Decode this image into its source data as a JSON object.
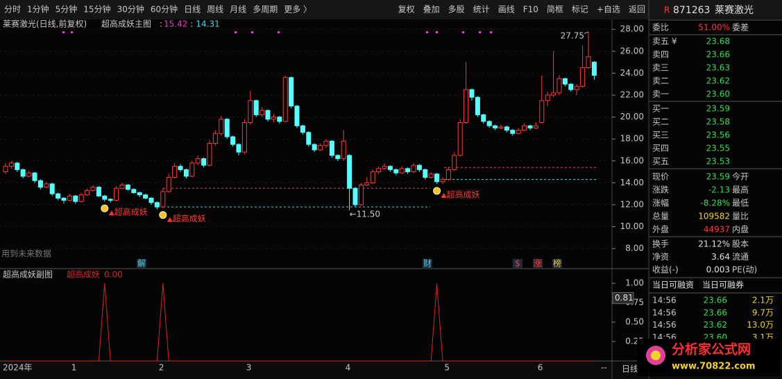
{
  "toolbar": {
    "left": [
      "分时",
      "1分钟",
      "5分钟",
      "15分钟",
      "30分钟",
      "60分钟",
      "日线",
      "周线",
      "月线",
      "多周期",
      "更多 〉"
    ],
    "right": [
      "复权",
      "叠加",
      "多股",
      "统计",
      "画线",
      "F10",
      "简框",
      "标记",
      "+自选",
      "返回"
    ]
  },
  "chart_data": [
    {
      "type": "candlestick",
      "title": "莱赛激光(日线,前复权)",
      "indicator": "超高成妖主图",
      "indicator_values": [
        {
          "value": 15.42,
          "color": "#e040c0"
        },
        {
          "value": 14.31,
          "color": "#40d8e8"
        }
      ],
      "up_color": "#ff3838",
      "down_color": "#54ffff",
      "categories": [
        "2024年",
        null,
        null,
        null,
        null,
        null,
        null,
        null,
        null,
        null,
        null,
        null,
        "1",
        null,
        null,
        null,
        null,
        null,
        null,
        null,
        null,
        null,
        null,
        null,
        null,
        null,
        null,
        "2",
        null,
        null,
        null,
        null,
        null,
        null,
        null,
        null,
        null,
        null,
        null,
        null,
        null,
        null,
        "3",
        null,
        null,
        null,
        null,
        null,
        null,
        null,
        null,
        null,
        null,
        null,
        null,
        null,
        null,
        null,
        null,
        "4",
        null,
        null,
        null,
        null,
        null,
        null,
        null,
        null,
        null,
        null,
        null,
        null,
        null,
        null,
        null,
        null,
        "5",
        null,
        null,
        null,
        null,
        null,
        null,
        null,
        null,
        null,
        null,
        null,
        null,
        null,
        null,
        null,
        "6",
        null,
        null,
        null,
        null,
        null,
        null,
        null,
        null,
        null
      ],
      "candles": [
        [
          15.0,
          15.8,
          14.8,
          15.5
        ],
        [
          15.5,
          16.0,
          15.3,
          15.8
        ],
        [
          15.8,
          15.9,
          15.0,
          15.2
        ],
        [
          15.2,
          15.3,
          14.4,
          14.6
        ],
        [
          14.6,
          15.1,
          14.5,
          14.9
        ],
        [
          14.9,
          15.0,
          14.0,
          14.2
        ],
        [
          14.2,
          14.3,
          13.4,
          13.6
        ],
        [
          13.6,
          14.1,
          13.5,
          13.9
        ],
        [
          13.9,
          14.0,
          12.8,
          13.0
        ],
        [
          13.0,
          13.1,
          12.4,
          12.6
        ],
        [
          12.6,
          12.7,
          12.1,
          12.4
        ],
        [
          12.4,
          13.0,
          12.3,
          12.8
        ],
        [
          12.8,
          12.9,
          12.1,
          12.3
        ],
        [
          12.3,
          13.1,
          12.2,
          12.9
        ],
        [
          12.9,
          13.5,
          12.8,
          13.3
        ],
        [
          13.3,
          13.8,
          13.2,
          13.6
        ],
        [
          13.6,
          13.7,
          12.7,
          12.8
        ],
        [
          12.8,
          12.9,
          12.3,
          12.5
        ],
        [
          12.5,
          12.6,
          12.2,
          12.4
        ],
        [
          12.4,
          13.7,
          12.3,
          13.5
        ],
        [
          13.5,
          14.0,
          13.4,
          13.8
        ],
        [
          13.8,
          13.9,
          13.3,
          13.4
        ],
        [
          13.4,
          13.5,
          13.0,
          13.1
        ],
        [
          13.1,
          13.2,
          12.7,
          12.9
        ],
        [
          12.9,
          13.0,
          12.5,
          12.6
        ],
        [
          12.6,
          12.7,
          12.0,
          12.2
        ],
        [
          12.2,
          12.3,
          11.6,
          11.8
        ],
        [
          11.8,
          13.5,
          11.7,
          13.2
        ],
        [
          13.2,
          14.8,
          13.1,
          14.5
        ],
        [
          14.5,
          15.8,
          14.4,
          15.5
        ],
        [
          15.5,
          15.7,
          15.0,
          15.2
        ],
        [
          15.2,
          15.3,
          14.4,
          14.6
        ],
        [
          14.6,
          16.0,
          14.5,
          15.8
        ],
        [
          15.8,
          16.5,
          15.6,
          16.2
        ],
        [
          16.2,
          16.3,
          15.4,
          15.6
        ],
        [
          15.6,
          17.9,
          15.5,
          17.6
        ],
        [
          17.6,
          18.8,
          17.4,
          18.5
        ],
        [
          18.5,
          20.1,
          18.3,
          19.8
        ],
        [
          19.8,
          19.9,
          18.0,
          18.2
        ],
        [
          18.2,
          18.3,
          17.3,
          17.5
        ],
        [
          17.5,
          17.6,
          16.5,
          16.8
        ],
        [
          16.8,
          19.8,
          16.6,
          19.5
        ],
        [
          19.5,
          22.4,
          19.3,
          21.5
        ],
        [
          21.5,
          21.6,
          20.0,
          20.2
        ],
        [
          20.2,
          20.9,
          20.0,
          20.6
        ],
        [
          20.6,
          20.7,
          19.6,
          19.8
        ],
        [
          19.8,
          20.3,
          19.5,
          20.0
        ],
        [
          20.0,
          20.1,
          19.4,
          19.6
        ],
        [
          19.6,
          23.8,
          19.5,
          23.6
        ],
        [
          23.6,
          23.7,
          20.8,
          21.0
        ],
        [
          21.0,
          21.1,
          19.0,
          19.2
        ],
        [
          19.2,
          19.3,
          18.4,
          18.6
        ],
        [
          18.6,
          18.7,
          17.3,
          17.5
        ],
        [
          17.5,
          17.6,
          16.8,
          17.0
        ],
        [
          17.0,
          17.6,
          16.9,
          17.4
        ],
        [
          17.4,
          18.0,
          17.2,
          17.8
        ],
        [
          17.8,
          17.9,
          16.3,
          16.5
        ],
        [
          16.5,
          16.6,
          16.0,
          16.2
        ],
        [
          16.2,
          18.8,
          16.0,
          17.8
        ],
        [
          16.5,
          16.6,
          11.5,
          13.5
        ],
        [
          13.5,
          13.6,
          11.8,
          12.0
        ],
        [
          12.0,
          14.0,
          11.9,
          13.8
        ],
        [
          13.8,
          14.5,
          13.7,
          14.0
        ],
        [
          14.0,
          15.2,
          13.9,
          15.0
        ],
        [
          15.0,
          15.5,
          14.8,
          15.3
        ],
        [
          15.3,
          15.8,
          15.2,
          15.5
        ],
        [
          15.5,
          15.6,
          15.0,
          15.2
        ],
        [
          15.2,
          15.3,
          14.7,
          14.9
        ],
        [
          14.9,
          15.5,
          14.8,
          15.3
        ],
        [
          15.3,
          15.4,
          14.8,
          15.0
        ],
        [
          15.0,
          15.8,
          14.9,
          15.6
        ],
        [
          15.6,
          15.7,
          15.0,
          15.2
        ],
        [
          15.2,
          15.3,
          14.3,
          14.5
        ],
        [
          14.5,
          15.0,
          14.4,
          14.8
        ],
        [
          14.8,
          14.9,
          13.9,
          14.1
        ],
        [
          14.1,
          14.5,
          13.9,
          14.3
        ],
        [
          14.3,
          15.4,
          14.2,
          15.2
        ],
        [
          15.2,
          16.8,
          15.1,
          16.5
        ],
        [
          16.5,
          19.8,
          16.4,
          19.5
        ],
        [
          19.5,
          25.0,
          19.4,
          22.5
        ],
        [
          22.5,
          22.6,
          21.5,
          21.8
        ],
        [
          21.8,
          21.9,
          20.0,
          20.2
        ],
        [
          20.2,
          20.3,
          19.4,
          19.6
        ],
        [
          19.6,
          19.7,
          19.0,
          19.2
        ],
        [
          19.2,
          19.3,
          18.8,
          19.0
        ],
        [
          19.0,
          19.3,
          18.9,
          19.1
        ],
        [
          19.1,
          19.2,
          18.6,
          18.8
        ],
        [
          18.8,
          18.9,
          18.3,
          18.5
        ],
        [
          18.5,
          19.0,
          18.4,
          18.8
        ],
        [
          18.8,
          19.4,
          18.7,
          19.2
        ],
        [
          19.2,
          19.3,
          18.8,
          19.0
        ],
        [
          19.0,
          19.5,
          18.9,
          19.2
        ],
        [
          19.5,
          23.8,
          19.4,
          21.5
        ],
        [
          21.5,
          22.3,
          21.0,
          22.0
        ],
        [
          22.0,
          26.0,
          21.8,
          22.2
        ],
        [
          22.2,
          23.8,
          22.0,
          23.5
        ],
        [
          23.5,
          23.6,
          22.8,
          23.0
        ],
        [
          23.0,
          23.1,
          22.3,
          22.5
        ],
        [
          22.5,
          23.0,
          22.0,
          22.8
        ],
        [
          22.8,
          26.5,
          22.7,
          24.5
        ],
        [
          24.5,
          27.75,
          24.4,
          25.5
        ],
        [
          25.0,
          25.1,
          23.4,
          23.8
        ]
      ],
      "ylim": [
        6.3,
        28.9
      ],
      "yticks": [
        {
          "value": 8,
          "label": "8.00"
        },
        {
          "value": 10,
          "label": "10.00"
        },
        {
          "value": 12,
          "label": "12.00"
        },
        {
          "value": 14,
          "label": "14.00"
        },
        {
          "value": 16,
          "label": "16.00"
        },
        {
          "value": 18,
          "label": "18.00"
        },
        {
          "value": 20,
          "label": "20.00"
        },
        {
          "value": 22,
          "label": "22.00"
        },
        {
          "value": 24,
          "label": "24.00"
        },
        {
          "value": 26,
          "label": "26.00"
        },
        {
          "value": 28,
          "label": "28.00"
        }
      ],
      "levels": [
        {
          "value": 13.5,
          "color": "#e0407a"
        },
        {
          "value": 11.8,
          "color": "#40d8e8"
        },
        {
          "value": 15.4,
          "color": "#e0407a"
        },
        {
          "value": 14.3,
          "color": "#40d8e8"
        }
      ],
      "annotations": [
        {
          "value": 27.75,
          "label": "27.75"
        },
        {
          "value": 11.5,
          "label": "←11.50"
        }
      ],
      "signal_label": "超高成妖",
      "events": [
        "解",
        "财",
        "$",
        "涨",
        "榜"
      ],
      "note": "用到未来数据"
    },
    {
      "type": "line",
      "title": "超高成妖副图",
      "series": [
        {
          "name": "超高成妖",
          "color": "#e02020",
          "values": [
            0,
            0,
            0,
            0,
            0,
            0,
            0,
            0,
            0,
            0,
            0,
            0,
            0,
            0,
            0,
            0,
            0,
            1,
            0,
            0,
            0,
            0,
            0,
            0,
            0,
            0,
            0,
            1,
            0,
            0,
            0,
            0,
            0,
            0,
            0,
            0,
            0,
            0,
            0,
            0,
            0,
            0,
            0,
            0,
            0,
            0,
            0,
            0,
            0,
            0,
            0,
            0,
            0,
            0,
            0,
            0,
            0,
            0,
            0,
            0,
            0,
            0,
            0,
            0,
            0,
            0,
            0,
            0,
            0,
            0,
            0,
            0,
            0,
            0,
            1,
            0,
            0,
            0,
            0,
            0,
            0,
            0,
            0,
            0,
            0,
            0,
            0,
            0,
            0,
            0,
            0,
            0,
            0,
            0,
            0,
            0,
            0,
            0,
            0,
            0,
            0,
            0
          ]
        }
      ],
      "legend_value": {
        "value": 0,
        "label": "0.00"
      },
      "cursor_value": {
        "value": 0.81,
        "label": "0.81"
      },
      "ylim": [
        0,
        1.18
      ],
      "yticks": [
        {
          "value": 0.25,
          "label": "0.25"
        },
        {
          "value": 0.5,
          "label": "0.50"
        },
        {
          "value": 0.75,
          "label": "0.75"
        },
        {
          "value": 1,
          "label": "1.00"
        }
      ],
      "period": "日线",
      "axis_end": "--"
    }
  ],
  "quote": {
    "flag": "R",
    "code": "871263",
    "name": "莱赛激光",
    "ratio": [
      "委比",
      "51.00%",
      "委差"
    ],
    "asks": [
      [
        "卖五 ¥",
        "23.68"
      ],
      [
        "卖四",
        "23.66"
      ],
      [
        "卖三",
        "23.63"
      ],
      [
        "卖二",
        "23.62"
      ],
      [
        "卖一",
        "23.60"
      ]
    ],
    "bids": [
      [
        "买一",
        "23.59"
      ],
      [
        "买二",
        "23.58"
      ],
      [
        "买三",
        "23.56"
      ],
      [
        "买四",
        "23.55"
      ],
      [
        "买五",
        "23.53"
      ]
    ],
    "stats": [
      [
        "现价",
        "23.59",
        "今开"
      ],
      [
        "涨跌",
        "-2.13",
        "最高"
      ],
      [
        "涨幅",
        "-8.28%",
        "最低"
      ],
      [
        "总量",
        "109582",
        "量比"
      ],
      [
        "外盘",
        "44937",
        "内盘"
      ],
      [
        "换手",
        "21.12%",
        "股本"
      ],
      [
        "净资",
        "3.64",
        "流通"
      ],
      [
        "收益(-)",
        "0.003",
        "PE(动)"
      ]
    ],
    "margin": [
      "当日可融资",
      "当日可融券"
    ],
    "trades": [
      [
        "14:56",
        "23.66",
        "2.1万"
      ],
      [
        "14:56",
        "23.66",
        "9.7万"
      ],
      [
        "14:56",
        "23.62",
        "13.0万"
      ],
      [
        "14:56",
        "23.60",
        "3.1万"
      ]
    ]
  },
  "watermark": {
    "title": "分析家公式网",
    "url": "www.70822.com"
  }
}
